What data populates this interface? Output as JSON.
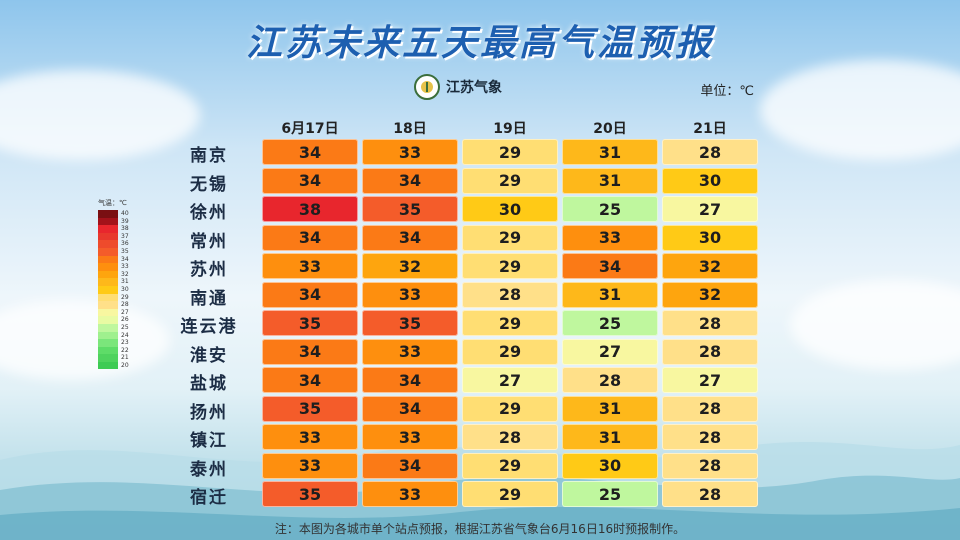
{
  "title": "江苏未来五天最高气温预报",
  "logo_text": "江苏气象",
  "unit_label": "单位：℃",
  "footnote": "注：本图为各城市单个站点预报，根据江苏省气象台6月16日16时预报制作。",
  "legend": {
    "title": "气温：℃",
    "levels": [
      40,
      39,
      38,
      37,
      36,
      35,
      34,
      33,
      32,
      31,
      30,
      29,
      28,
      27,
      26,
      25,
      24,
      23,
      22,
      21,
      20
    ],
    "colors": {
      "40": "#7a0f12",
      "39": "#a3121a",
      "38": "#e8262d",
      "37": "#e8382d",
      "36": "#ee4b2c",
      "35": "#f45c2a",
      "34": "#fb7a16",
      "33": "#fe8f0e",
      "32": "#fea50e",
      "31": "#feb81a",
      "30": "#ffca16",
      "29": "#ffde73",
      "28": "#ffe089",
      "27": "#f8f7a0",
      "26": "#e9fba3",
      "25": "#bff79e",
      "24": "#9ff08e",
      "23": "#7be67b",
      "22": "#5edc68",
      "21": "#4fd35e",
      "20": "#3ecb54"
    }
  },
  "chart_data": {
    "type": "heatmap",
    "title": "江苏未来五天最高气温预报",
    "unit": "℃",
    "columns": [
      "6月17日",
      "18日",
      "19日",
      "20日",
      "21日"
    ],
    "rows": [
      "南京",
      "无锡",
      "徐州",
      "常州",
      "苏州",
      "南通",
      "连云港",
      "淮安",
      "盐城",
      "扬州",
      "镇江",
      "泰州",
      "宿迁"
    ],
    "values": [
      [
        34,
        33,
        29,
        31,
        28
      ],
      [
        34,
        34,
        29,
        31,
        30
      ],
      [
        38,
        35,
        30,
        25,
        27
      ],
      [
        34,
        34,
        29,
        33,
        30
      ],
      [
        33,
        32,
        29,
        34,
        32
      ],
      [
        34,
        33,
        28,
        31,
        32
      ],
      [
        35,
        35,
        29,
        25,
        28
      ],
      [
        34,
        33,
        29,
        27,
        28
      ],
      [
        34,
        34,
        27,
        28,
        27
      ],
      [
        35,
        34,
        29,
        31,
        28
      ],
      [
        33,
        33,
        28,
        31,
        28
      ],
      [
        33,
        34,
        29,
        30,
        28
      ],
      [
        35,
        33,
        29,
        25,
        28
      ]
    ]
  }
}
